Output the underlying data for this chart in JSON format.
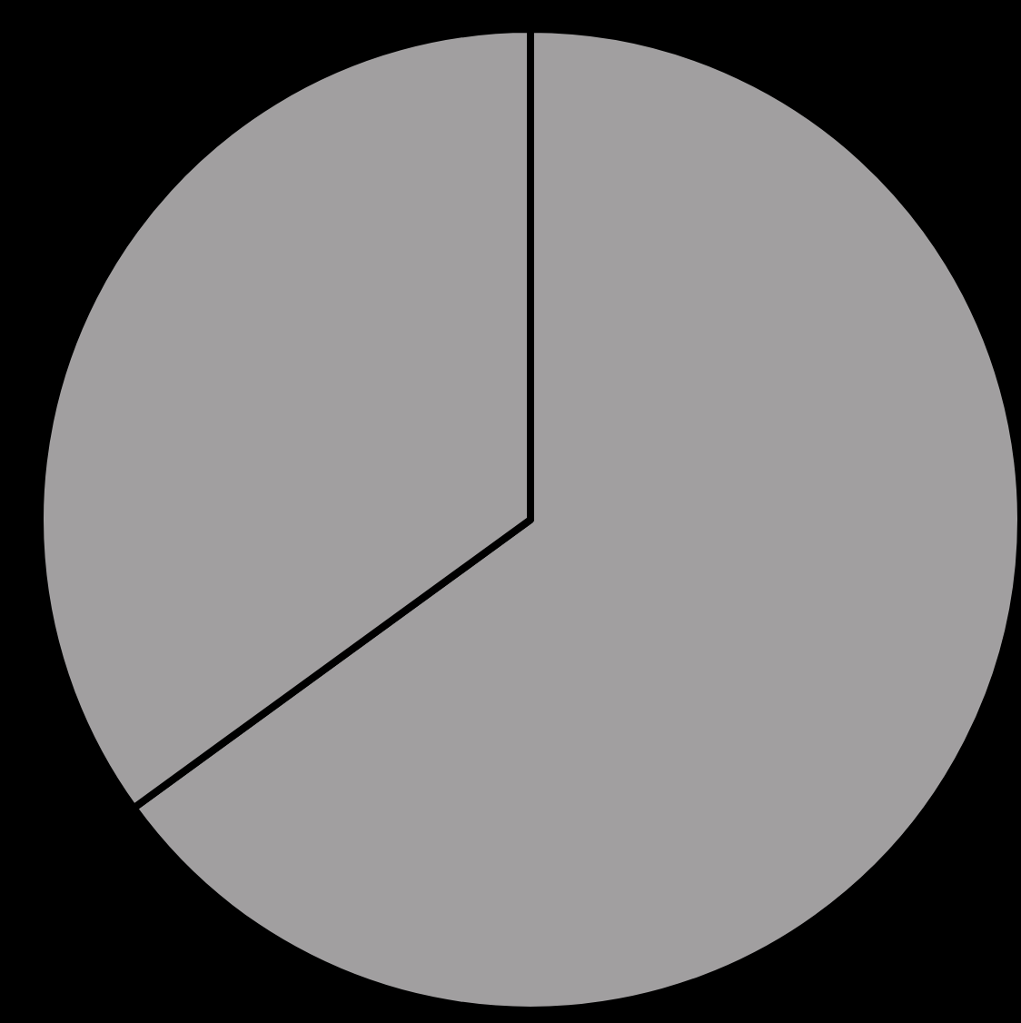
{
  "chart_data": {
    "type": "pie",
    "categories": [
      null,
      null
    ],
    "values": [
      65,
      35
    ],
    "colors": [
      "#a19fa0",
      "#a19fa0"
    ]
  }
}
